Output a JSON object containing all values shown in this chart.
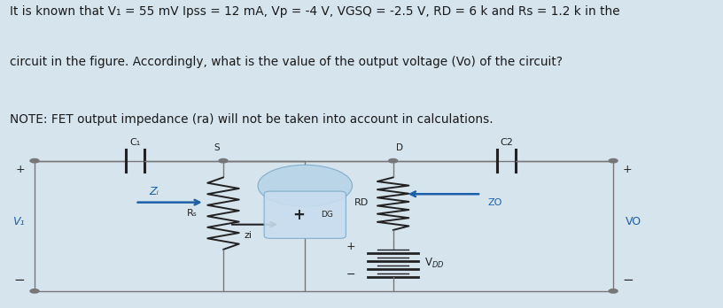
{
  "title_line1": "It is known that V₁ = 55 mV Ipss = 12 mA, Vp = -4 V, VGSQ = -2.5 V, RD = 6 k and Rs = 1.2 k in the",
  "title_line2": "circuit in the figure. Accordingly, what is the value of the output voltage (Vo) of the circuit?",
  "note_line": "NOTE: FET output impedance (ra) will not be taken into account in calculations.",
  "bg_color": "#d6e4ee",
  "circuit_bg": "#eaf1f7",
  "text_color": "#1a1a1a",
  "blue_color": "#1a5fa8",
  "wire_color": "#888888",
  "figsize": [
    8.16,
    3.48
  ],
  "dpi": 100
}
